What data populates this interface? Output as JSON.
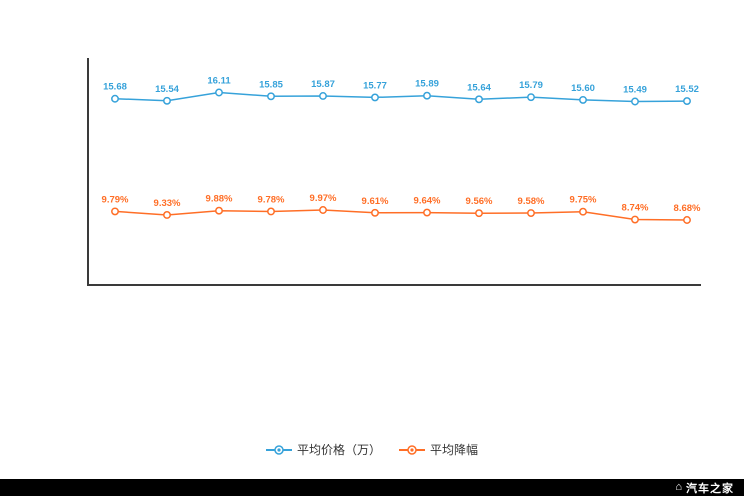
{
  "chart_data": {
    "type": "line",
    "point_count": 12,
    "x_tick_labels_visible": false,
    "y_tick_labels_visible": false,
    "grid": false,
    "legend_position": "bottom",
    "series": [
      {
        "name": "平均价格（万）",
        "color": "#36a2da",
        "suffix": "",
        "values": [
          15.68,
          15.54,
          16.11,
          15.85,
          15.87,
          15.77,
          15.89,
          15.64,
          15.79,
          15.6,
          15.49,
          15.52
        ]
      },
      {
        "name": "平均降幅",
        "color": "#ff6e26",
        "suffix": "%",
        "values": [
          9.79,
          9.33,
          9.88,
          9.78,
          9.97,
          9.61,
          9.64,
          9.56,
          9.58,
          9.75,
          8.74,
          8.68
        ]
      }
    ]
  },
  "legend": {
    "items": [
      {
        "label": "平均价格（万）",
        "color": "#36a2da"
      },
      {
        "label": "平均降幅",
        "color": "#ff6e26"
      }
    ]
  },
  "footer": {
    "brand": "汽车之家"
  },
  "colors": {
    "axis": "#3a3a3a",
    "background": "#ffffff",
    "footer_bg": "#000000"
  }
}
